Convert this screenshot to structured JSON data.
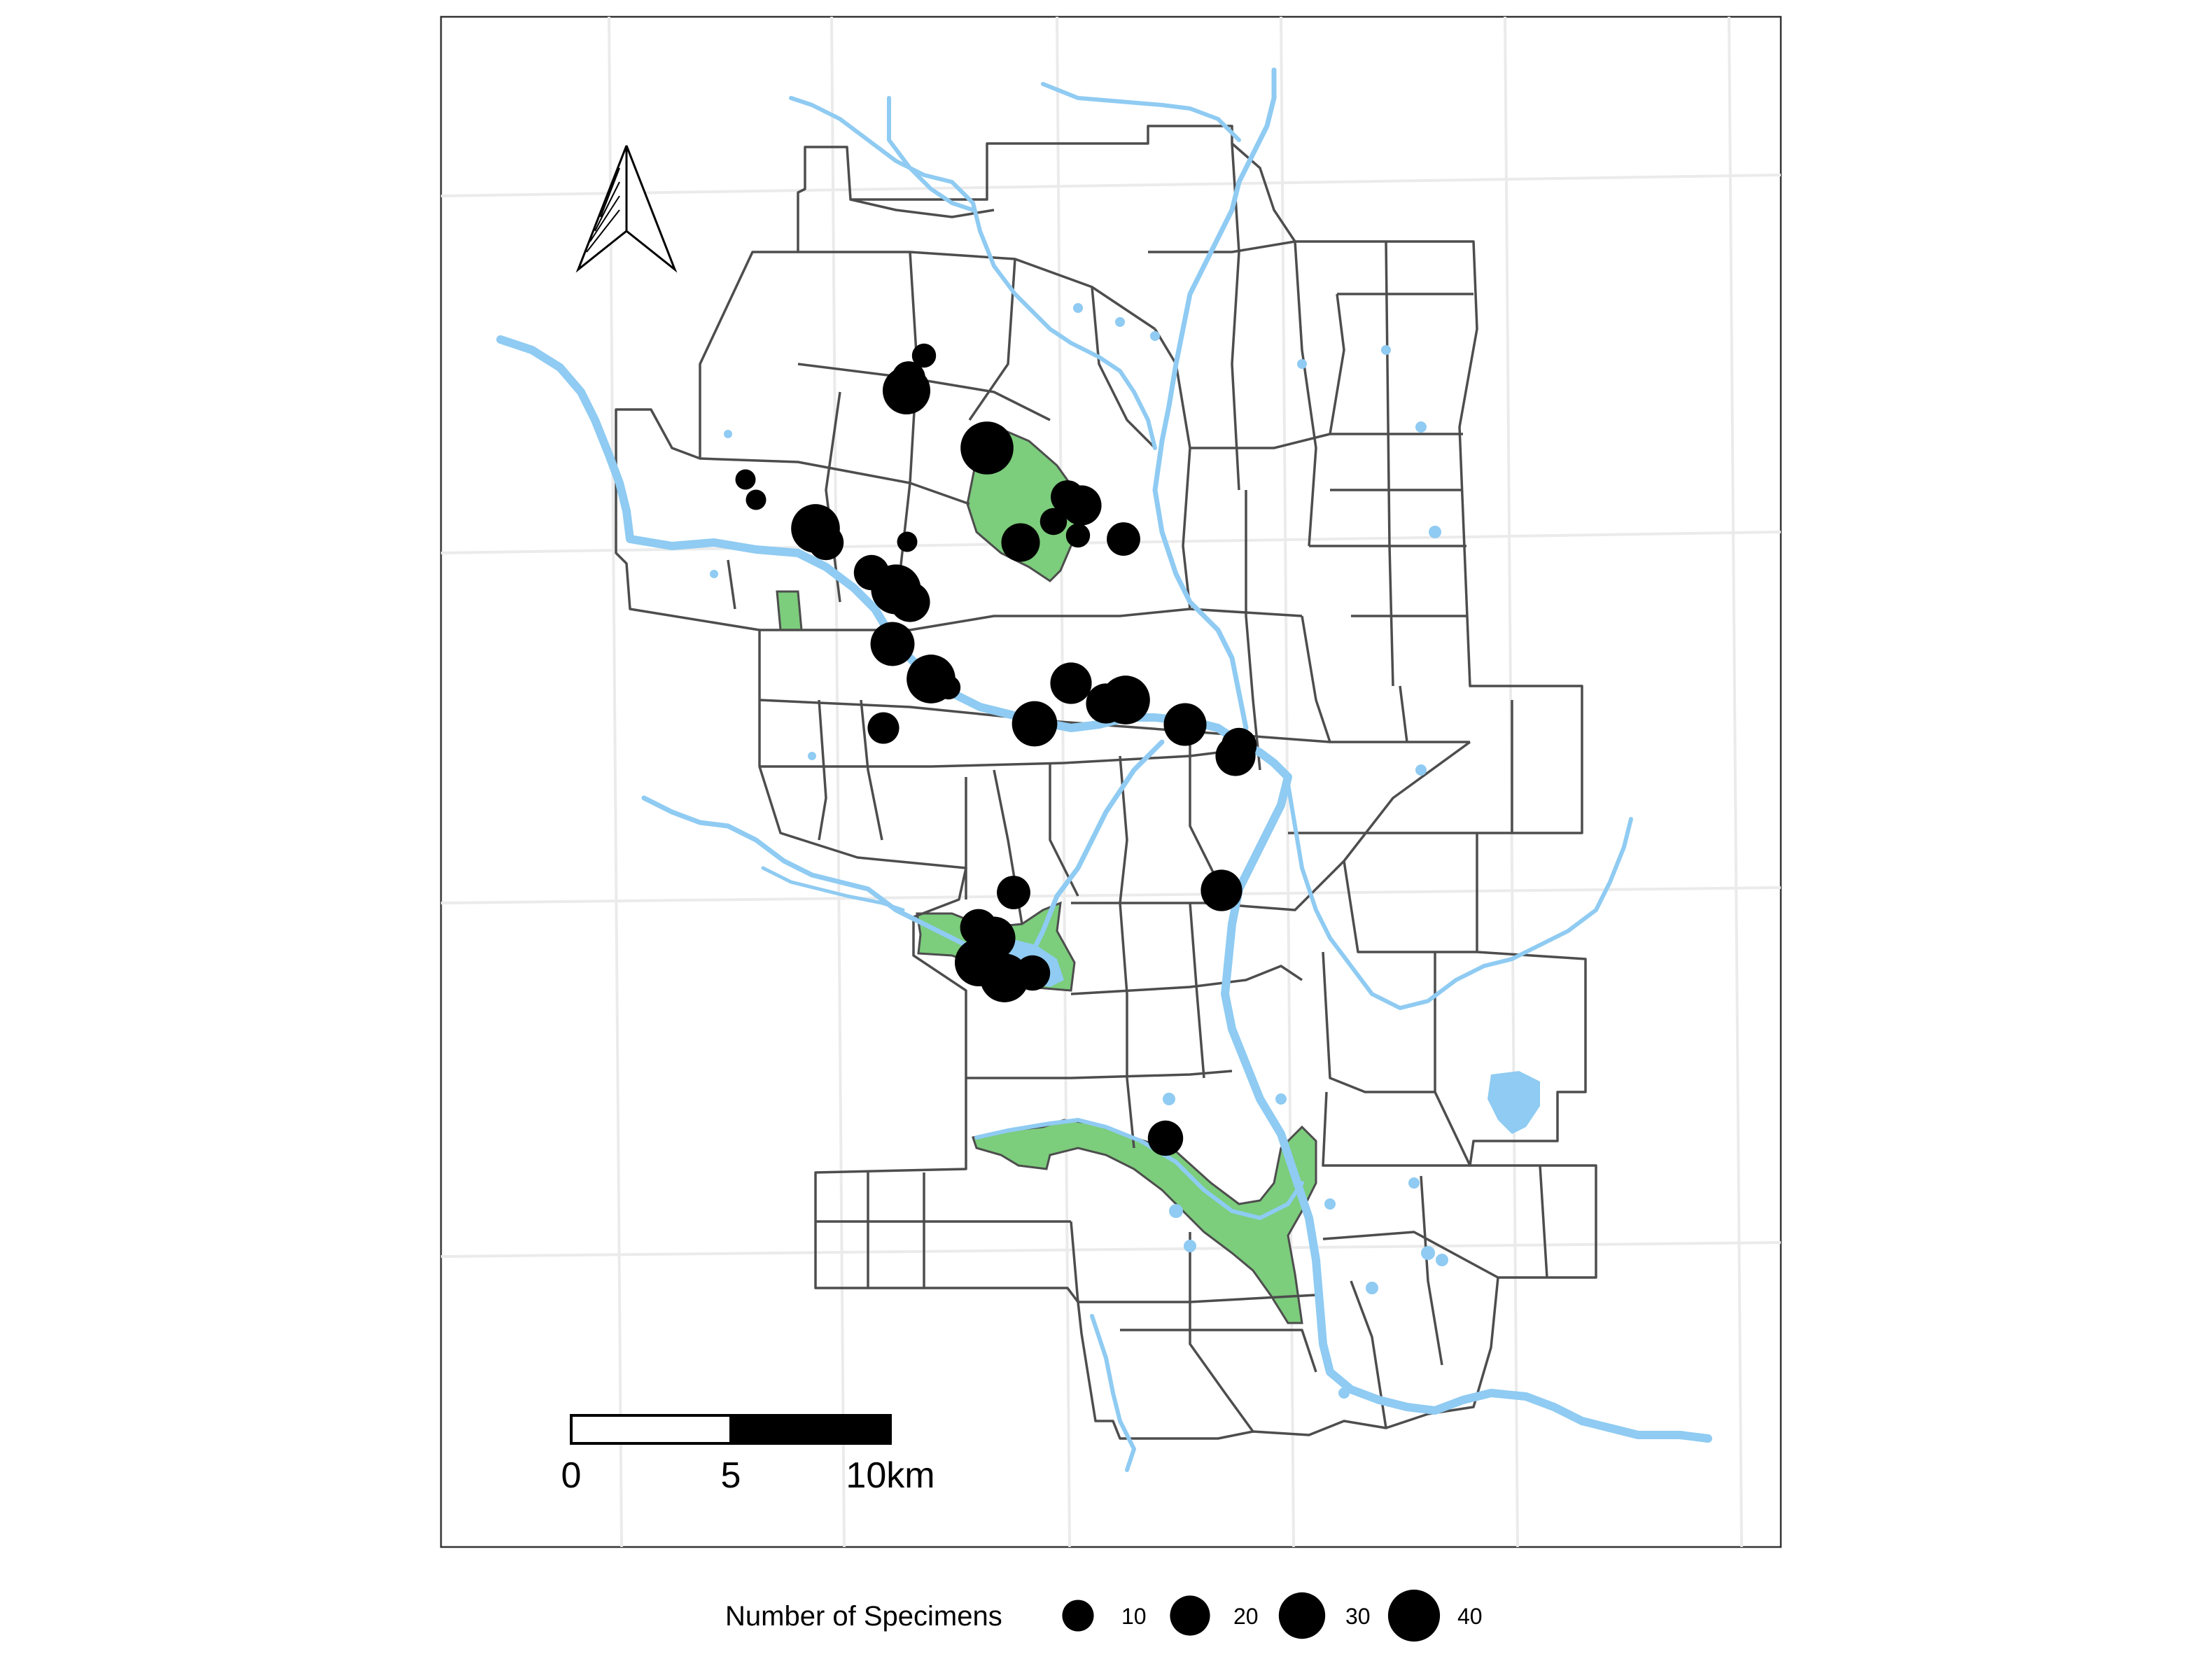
{
  "legend": {
    "title": "Number of Specimens",
    "labels": [
      "10",
      "20",
      "30",
      "40"
    ],
    "values": [
      10,
      20,
      30,
      40
    ]
  },
  "scale_bar": {
    "tick_0": "0",
    "tick_1": "5",
    "tick_2": "10km"
  },
  "colors": {
    "water": "#8fcbf2",
    "park": "#7ccd7c",
    "boundary": "#4d4d4d",
    "point": "#000000",
    "grid": "#ebebeb"
  },
  "icons": [
    "north-arrow-icon"
  ],
  "chart_data": {
    "type": "scatter",
    "title": "",
    "xlabel": "",
    "ylabel": "",
    "grid": true,
    "legend_placement": "bottom",
    "size_legend": [
      10,
      20,
      30,
      40
    ]
  }
}
